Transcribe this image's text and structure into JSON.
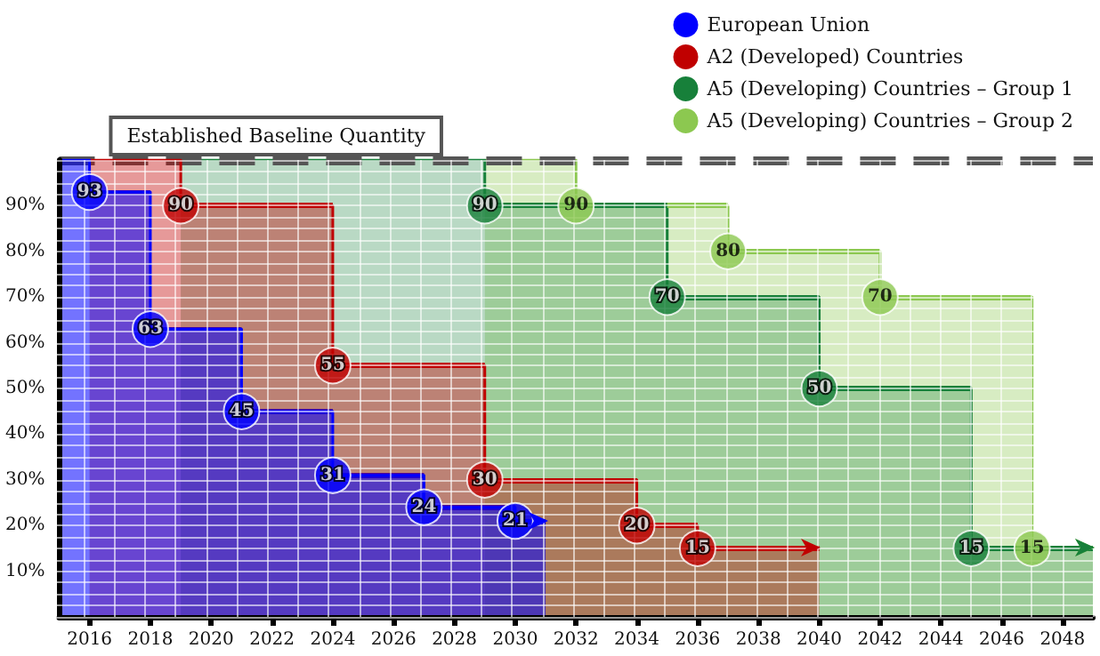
{
  "chart_data": {
    "type": "area",
    "xlim": [
      2015,
      2049
    ],
    "xticks": [
      2016,
      2018,
      2020,
      2022,
      2024,
      2026,
      2028,
      2030,
      2032,
      2034,
      2036,
      2038,
      2040,
      2042,
      2044,
      2046,
      2048
    ],
    "ylim": [
      0,
      100
    ],
    "yticks": [
      {
        "value": 10,
        "label": "10%"
      },
      {
        "value": 20,
        "label": "20%"
      },
      {
        "value": 30,
        "label": "30%"
      },
      {
        "value": 40,
        "label": "40%"
      },
      {
        "value": 50,
        "label": "50%"
      },
      {
        "value": 60,
        "label": "60%"
      },
      {
        "value": 70,
        "label": "70%"
      },
      {
        "value": 80,
        "label": "80%"
      },
      {
        "value": 90,
        "label": "90%"
      }
    ],
    "grid": true,
    "legend": "top right",
    "ref_lines": [
      {
        "axis": "y",
        "value": 100,
        "label": "Established Baseline Quantity",
        "color": "#555555",
        "line_style": "dashed"
      }
    ],
    "series": [
      {
        "name": "A5 (Developing) Countries – Group 2",
        "color": "#8cc850",
        "x": [
          2029,
          2032,
          2032,
          2037,
          2037,
          2042,
          2042,
          2047,
          2047,
          2049
        ],
        "values": [
          100,
          100,
          90,
          90,
          80,
          80,
          70,
          70,
          15,
          15
        ],
        "value_labels": [
          null,
          null,
          "90",
          null,
          "80",
          null,
          "70",
          null,
          "15",
          null
        ]
      },
      {
        "name": "A5 (Developing) Countries – Group 1",
        "color": "#17803a",
        "x": [
          2019,
          2029,
          2029,
          2035,
          2035,
          2040,
          2040,
          2045,
          2045,
          2049
        ],
        "values": [
          100,
          100,
          90,
          90,
          70,
          70,
          50,
          50,
          15,
          15
        ],
        "value_labels": [
          null,
          null,
          "90",
          null,
          "70",
          null,
          "50",
          null,
          "15",
          null
        ]
      },
      {
        "name": "A2 (Developed) Countries",
        "color": "#c00000",
        "x": [
          2016,
          2019,
          2019,
          2024,
          2024,
          2029,
          2029,
          2034,
          2034,
          2036,
          2036,
          2040
        ],
        "values": [
          100,
          100,
          90,
          90,
          55,
          55,
          30,
          30,
          20,
          20,
          15,
          15
        ],
        "value_labels": [
          null,
          null,
          "90",
          null,
          "55",
          null,
          "30",
          null,
          "20",
          null,
          "15",
          null
        ]
      },
      {
        "name": "European Union",
        "color": "#0000ff",
        "x": [
          2015,
          2016,
          2016,
          2018,
          2018,
          2021,
          2021,
          2024,
          2024,
          2027,
          2027,
          2030,
          2030,
          2031
        ],
        "values": [
          100,
          100,
          93,
          93,
          63,
          63,
          45,
          45,
          31,
          31,
          24,
          24,
          21,
          21
        ],
        "value_labels": [
          null,
          null,
          "93",
          null,
          "63",
          null,
          "45",
          null,
          "31",
          null,
          "24",
          null,
          "21",
          null
        ]
      }
    ]
  }
}
